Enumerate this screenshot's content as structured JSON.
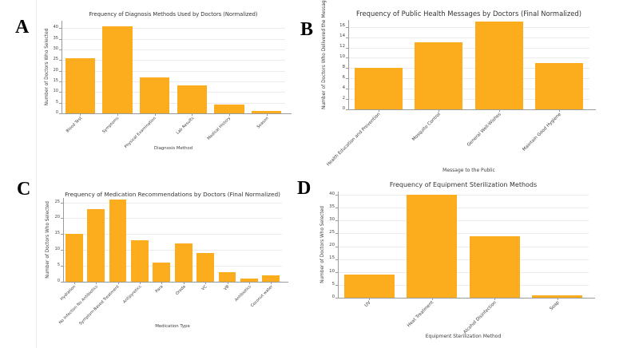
{
  "figure": {
    "background": "#ffffff"
  },
  "colors": {
    "bar": "#FBAD1D",
    "grid": "#ebebeb",
    "spine": "#9b9b9b"
  },
  "panel_letters": [
    "A",
    "B",
    "C",
    "D"
  ],
  "chart_data": [
    {
      "type": "bar",
      "panel": "A",
      "title": "Frequency of Diagnosis Methods Used by Doctors (Normalized)",
      "xlabel": "Diagnosis Method",
      "ylabel": "Number of Doctors Who Selected",
      "categories": [
        "Blood Test",
        "Symptoms",
        "Physical Examination",
        "Lab Results",
        "Medical History",
        "Season"
      ],
      "values": [
        26,
        41,
        17,
        13,
        4,
        1
      ],
      "yticks": [
        0,
        5,
        10,
        15,
        20,
        25,
        30,
        35,
        40
      ],
      "ylim": [
        0,
        43.5
      ],
      "grid": true,
      "legend": "none"
    },
    {
      "type": "bar",
      "panel": "B",
      "title": "Frequency of Public Health Messages by Doctors (Final Normalized)",
      "xlabel": "Message to the Public",
      "ylabel": "Number of Doctors Who Delivered the Message",
      "categories": [
        "Health Education and Prevention",
        "Mosquito Control",
        "General Well-Wishes",
        "Maintain Good Hygiene"
      ],
      "values": [
        8,
        13,
        17,
        9
      ],
      "yticks": [
        0,
        2,
        4,
        6,
        8,
        10,
        12,
        14,
        16
      ],
      "ylim": [
        0,
        17.35
      ],
      "grid": true,
      "legend": "none"
    },
    {
      "type": "bar",
      "panel": "C",
      "title": "Frequency of Medication Recommendations by Doctors (Final Normalized)",
      "xlabel": "Medication Type",
      "ylabel": "Number of Doctors Who Selected",
      "categories": [
        "Hydration",
        "No Infection No Antibiotics",
        "Symptom-Based Treatment",
        "Antipyretics",
        "Para",
        "Oreda",
        "VC",
        "VB",
        "Antibiotics",
        "Coconut water"
      ],
      "values": [
        15,
        23,
        26,
        13,
        6,
        12,
        9,
        3,
        1,
        2
      ],
      "yticks": [
        0,
        5,
        10,
        15,
        20,
        25
      ],
      "ylim": [
        0,
        26.4
      ],
      "grid": true,
      "legend": "none"
    },
    {
      "type": "bar",
      "panel": "D",
      "title": "Frequency of Equipment Sterilization Methods",
      "xlabel": "Equipment Sterilization Method",
      "ylabel": "Number of Doctors Who Selected",
      "categories": [
        "UV",
        "Heat Treatment",
        "Alcohol Disinfection",
        "Soap"
      ],
      "values": [
        9,
        40,
        24,
        1
      ],
      "yticks": [
        0,
        5,
        10,
        15,
        20,
        25,
        30,
        35,
        40
      ],
      "ylim": [
        0,
        41.3
      ],
      "grid": true,
      "legend": "none"
    }
  ]
}
